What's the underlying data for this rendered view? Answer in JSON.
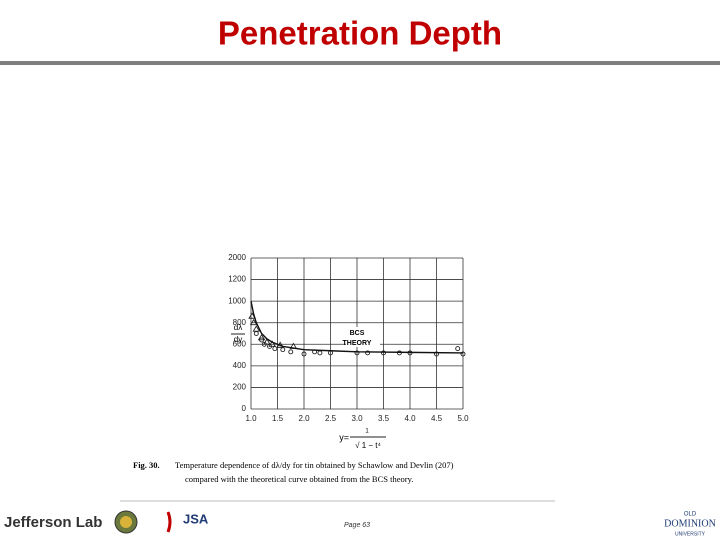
{
  "header": {
    "title": "Penetration Depth"
  },
  "figure": {
    "chart_data": {
      "type": "scatter",
      "y_label_num": "dλ",
      "y_label_den": "dy",
      "annotation": [
        "BCS",
        "THEORY"
      ],
      "xlim": [
        1,
        5
      ],
      "xticks": [
        {
          "value": 1,
          "label": "1.0"
        },
        1.5,
        {
          "value": 2,
          "label": "2.0"
        },
        2.5,
        {
          "value": 3,
          "label": "3.0"
        },
        3.5,
        {
          "value": 4,
          "label": "4.0"
        },
        4.5,
        {
          "value": 5,
          "label": "5.0"
        }
      ],
      "yticks": [
        0,
        200,
        400,
        600,
        800,
        1000,
        1200,
        2000
      ],
      "grid": true,
      "series": [
        {
          "marker": "triangle",
          "color": "#222222",
          "x": [
            1.02,
            1.05,
            1.1,
            1.2,
            1.3,
            1.4,
            1.55,
            1.8
          ],
          "values": [
            860,
            800,
            740,
            660,
            620,
            600,
            590,
            580
          ]
        },
        {
          "marker": "circle",
          "color": "#222222",
          "x": [
            1.1,
            1.2,
            1.25,
            1.35,
            1.45,
            1.6,
            1.75,
            2.0,
            2.2,
            2.3,
            2.5,
            3.0,
            3.2,
            3.5,
            3.8,
            4.0,
            4.5,
            4.9,
            5.0
          ],
          "values": [
            700,
            640,
            600,
            580,
            560,
            550,
            530,
            510,
            530,
            520,
            520,
            520,
            520,
            520,
            520,
            520,
            510,
            560,
            510
          ]
        },
        {
          "marker": "line",
          "color": "#111111",
          "x": [
            1.0,
            1.05,
            1.1,
            1.2,
            1.3,
            1.4,
            1.6,
            2.0,
            2.5,
            3.0,
            4.0,
            5.0
          ],
          "values": [
            1000,
            880,
            800,
            700,
            650,
            620,
            580,
            550,
            540,
            530,
            525,
            520
          ]
        }
      ]
    },
    "formula": {
      "lhs": "y=",
      "numerator": "1",
      "denominator": "√ 1 − t⁴"
    },
    "caption": {
      "label": "Fig. 30.",
      "line1": "Temperature dependence of dλ/dy for tin obtained by Schawlow and Devlin (207)",
      "line2": "compared with the theoretical curve obtained from the BCS theory."
    }
  },
  "footer": {
    "logo1": "Jefferson Lab",
    "logo2": "JSA",
    "page": "Page 63",
    "logo3_top": "OLD",
    "logo3_mid": "DOMINION",
    "logo3_bottom": "UNIVERSITY"
  }
}
